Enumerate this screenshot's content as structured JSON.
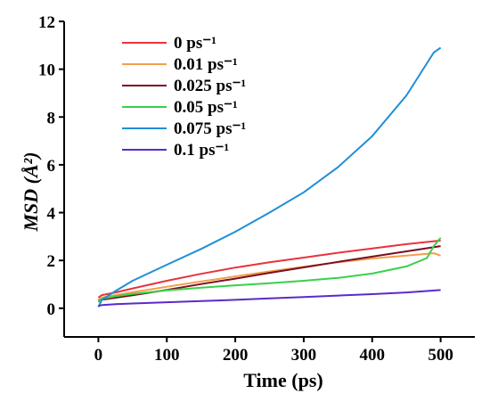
{
  "chart_data": {
    "type": "line",
    "xlabel": "Time (ps)",
    "ylabel": "MSD (Å²)",
    "xlim": [
      -50,
      550
    ],
    "ylim": [
      -1.2,
      12
    ],
    "xticks": [
      0,
      100,
      200,
      300,
      400,
      500
    ],
    "yticks": [
      0,
      2,
      4,
      6,
      8,
      10,
      12
    ],
    "grid": false,
    "legend_position": "top-left",
    "series": [
      {
        "name": "0 ps⁻¹",
        "color": "#e8333d",
        "x": [
          0,
          5,
          25,
          50,
          100,
          150,
          200,
          250,
          300,
          350,
          400,
          450,
          500
        ],
        "y": [
          0.45,
          0.55,
          0.66,
          0.83,
          1.15,
          1.44,
          1.7,
          1.92,
          2.12,
          2.32,
          2.5,
          2.68,
          2.83
        ]
      },
      {
        "name": "0.01 ps⁻¹",
        "color": "#f29e4c",
        "x": [
          0,
          5,
          25,
          50,
          100,
          150,
          200,
          250,
          300,
          350,
          400,
          450,
          490,
          500
        ],
        "y": [
          0.35,
          0.45,
          0.55,
          0.67,
          0.9,
          1.12,
          1.33,
          1.54,
          1.74,
          1.92,
          2.08,
          2.2,
          2.3,
          2.2
        ]
      },
      {
        "name": "0.025 ps⁻¹",
        "color": "#7a0f1e",
        "x": [
          0,
          5,
          25,
          50,
          100,
          150,
          200,
          250,
          300,
          350,
          400,
          450,
          500
        ],
        "y": [
          0.3,
          0.36,
          0.44,
          0.54,
          0.77,
          1.01,
          1.24,
          1.48,
          1.71,
          1.94,
          2.16,
          2.38,
          2.6
        ]
      },
      {
        "name": "0.05 ps⁻¹",
        "color": "#3bd04a",
        "x": [
          0,
          5,
          25,
          50,
          100,
          150,
          200,
          250,
          300,
          350,
          400,
          450,
          480,
          490,
          500
        ],
        "y": [
          0.25,
          0.4,
          0.5,
          0.6,
          0.75,
          0.86,
          0.96,
          1.05,
          1.15,
          1.27,
          1.45,
          1.75,
          2.1,
          2.6,
          2.95
        ]
      },
      {
        "name": "0.075 ps⁻¹",
        "color": "#1f8fd6",
        "x": [
          0,
          5,
          25,
          50,
          100,
          150,
          200,
          250,
          300,
          350,
          400,
          450,
          490,
          500
        ],
        "y": [
          0.05,
          0.35,
          0.72,
          1.15,
          1.82,
          2.48,
          3.2,
          4.0,
          4.85,
          5.9,
          7.2,
          8.9,
          10.7,
          10.9
        ]
      },
      {
        "name": "0.1 ps⁻¹",
        "color": "#5b2bc9",
        "x": [
          0,
          5,
          25,
          50,
          100,
          150,
          200,
          250,
          300,
          350,
          400,
          450,
          500
        ],
        "y": [
          0.1,
          0.13,
          0.17,
          0.2,
          0.25,
          0.3,
          0.35,
          0.41,
          0.47,
          0.53,
          0.59,
          0.66,
          0.76
        ]
      }
    ]
  }
}
